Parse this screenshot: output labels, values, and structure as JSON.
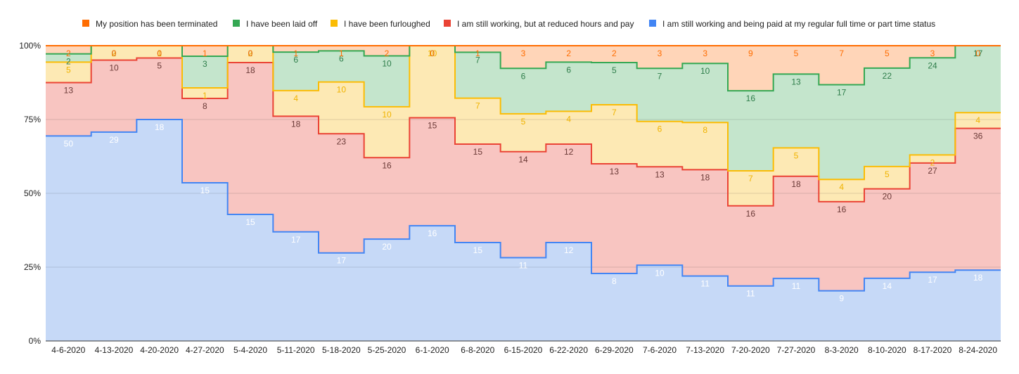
{
  "chart_data": {
    "type": "area",
    "stacked": "percent",
    "step": true,
    "grid": true,
    "legend_position": "top",
    "y_tick_labels": [
      "0%",
      "25%",
      "50%",
      "75%",
      "100%"
    ],
    "ylim": [
      0,
      100
    ],
    "categories": [
      "4-6-2020",
      "4-13-2020",
      "4-20-2020",
      "4-27-2020",
      "5-4-2020",
      "5-11-2020",
      "5-18-2020",
      "5-25-2020",
      "6-1-2020",
      "6-8-2020",
      "6-15-2020",
      "6-22-2020",
      "6-29-2020",
      "7-6-2020",
      "7-13-2020",
      "7-20-2020",
      "7-27-2020",
      "8-3-2020",
      "8-10-2020",
      "8-17-2020",
      "8-24-2020"
    ],
    "series": [
      {
        "name": "I am still working and being paid at my regular full time or part time status",
        "color": "#4285f4",
        "fill": "#c6d9f7",
        "label_color": "#ffffff",
        "values": [
          50,
          29,
          18,
          15,
          15,
          17,
          17,
          20,
          16,
          15,
          11,
          12,
          8,
          10,
          11,
          11,
          11,
          9,
          14,
          17,
          18
        ]
      },
      {
        "name": "I am still working, but at reduced hours and pay",
        "color": "#ea4335",
        "fill": "#f8c5c1",
        "label_color": "#6b3a37",
        "values": [
          13,
          10,
          5,
          8,
          18,
          18,
          23,
          16,
          15,
          15,
          14,
          12,
          13,
          13,
          18,
          16,
          18,
          16,
          20,
          27,
          36
        ]
      },
      {
        "name": "I have been furloughed",
        "color": "#fbbc04",
        "fill": "#fde9b4",
        "label_color": "#f0b300",
        "values": [
          5,
          2,
          1,
          1,
          2,
          4,
          10,
          10,
          10,
          7,
          5,
          4,
          7,
          6,
          8,
          7,
          5,
          4,
          5,
          2,
          4
        ]
      },
      {
        "name": "I have been laid off",
        "color": "#34a853",
        "fill": "#c4e5cc",
        "label_color": "#2e7d4a",
        "values": [
          2,
          0,
          0,
          3,
          0,
          6,
          6,
          10,
          0,
          7,
          6,
          6,
          5,
          7,
          10,
          16,
          13,
          17,
          22,
          24,
          17
        ]
      },
      {
        "name": "My position has been terminated",
        "color": "#ff6d01",
        "fill": "#ffd5b8",
        "label_color": "#ff6d01",
        "values": [
          2,
          0,
          0,
          1,
          0,
          1,
          1,
          2,
          0,
          1,
          3,
          2,
          2,
          3,
          3,
          9,
          5,
          7,
          5,
          3,
          0
        ]
      }
    ],
    "legend_order": [
      4,
      3,
      2,
      1,
      0
    ]
  }
}
